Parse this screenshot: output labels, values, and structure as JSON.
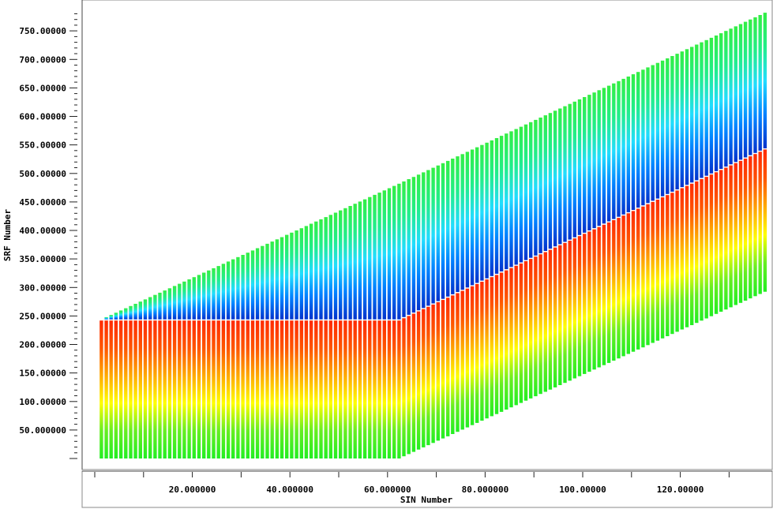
{
  "chart_data": {
    "type": "line",
    "title": "",
    "xlabel": "SIN Number",
    "ylabel": "SRF Number",
    "xlim": [
      0,
      138
    ],
    "ylim": [
      -5,
      785
    ],
    "x_ticks": [
      {
        "value": 20,
        "label": "20.000000"
      },
      {
        "value": 40,
        "label": "40.000000"
      },
      {
        "value": 60,
        "label": "60.000000"
      },
      {
        "value": 80,
        "label": "80.000000"
      },
      {
        "value": 100,
        "label": "100.00000"
      },
      {
        "value": 120,
        "label": "120.00000"
      }
    ],
    "y_ticks": [
      {
        "value": 50,
        "label": "50.000000"
      },
      {
        "value": 100,
        "label": "100.00000"
      },
      {
        "value": 150,
        "label": "150.00000"
      },
      {
        "value": 200,
        "label": "200.00000"
      },
      {
        "value": 250,
        "label": "250.00000"
      },
      {
        "value": 300,
        "label": "300.00000"
      },
      {
        "value": 350,
        "label": "350.00000"
      },
      {
        "value": 400,
        "label": "400.00000"
      },
      {
        "value": 450,
        "label": "450.00000"
      },
      {
        "value": 500,
        "label": "500.00000"
      },
      {
        "value": 550,
        "label": "550.00000"
      },
      {
        "value": 600,
        "label": "600.00000"
      },
      {
        "value": 650,
        "label": "650.00000"
      },
      {
        "value": 700,
        "label": "700.00000"
      },
      {
        "value": 750,
        "label": "750.00000"
      }
    ],
    "grid": false,
    "sin_range": [
      1,
      137
    ],
    "bend_at_sin": 62,
    "segments": [
      {
        "name": "lower",
        "bottom": {
          "start": 0,
          "slope_after_bend": 3.9
        },
        "top": {
          "start": 242,
          "slope_after_bend": 4.0
        },
        "colors": [
          "#22ee22",
          "#66ee22",
          "#ffff00",
          "#ffaa00",
          "#ff5500",
          "#ff2a00"
        ]
      },
      {
        "name": "upper",
        "bottom": {
          "start": 244,
          "slope_after_bend": 4.0
        },
        "top": {
          "start": 244,
          "slope_before_bend": 3.9,
          "slope_after_bend": 4.0
        },
        "colors": [
          "#0033cc",
          "#0080ff",
          "#22ddff",
          "#22ee88",
          "#33ee44"
        ]
      }
    ]
  }
}
